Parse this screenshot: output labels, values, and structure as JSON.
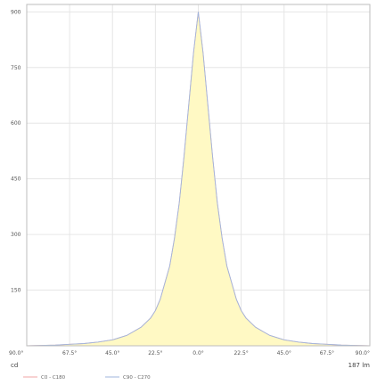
{
  "chart_data": {
    "type": "area",
    "title": "",
    "ylabel_unit": "cd",
    "xlabel_unit": "187 lm",
    "x_tick_labels": [
      "90.0°",
      "67.5°",
      "45.0°",
      "22.5°",
      "0.0°",
      "22.5°",
      "45.0°",
      "67.5°",
      "90.0°"
    ],
    "y_ticks": [
      150,
      300,
      450,
      600,
      750,
      900
    ],
    "ylim": [
      0,
      920
    ],
    "xlim": [
      -90,
      90
    ],
    "grid": true,
    "legend_position": "bottom-left",
    "colors": {
      "fill": "#fff9c4",
      "c0": "#f2a6a6",
      "c90": "#9fb6dd"
    },
    "series": [
      {
        "name": "C0 - C180",
        "x": [
          -90,
          -75,
          -67.5,
          -60,
          -52.5,
          -45,
          -37.5,
          -30,
          -25,
          -22.5,
          -20,
          -15,
          -12.5,
          -10,
          -7.5,
          -5,
          -2.5,
          0,
          2.5,
          5,
          7.5,
          10,
          12.5,
          15,
          20,
          22.5,
          25,
          30,
          37.5,
          45,
          52.5,
          60,
          67.5,
          75,
          90
        ],
        "values": [
          0,
          2,
          4,
          6,
          10,
          16,
          28,
          50,
          75,
          95,
          125,
          215,
          290,
          385,
          510,
          650,
          790,
          900,
          790,
          650,
          510,
          385,
          290,
          215,
          125,
          95,
          75,
          50,
          28,
          16,
          10,
          6,
          4,
          2,
          0
        ]
      },
      {
        "name": "C90 - C270",
        "x": [
          -90,
          -75,
          -67.5,
          -60,
          -52.5,
          -45,
          -37.5,
          -30,
          -25,
          -22.5,
          -20,
          -15,
          -12.5,
          -10,
          -7.5,
          -5,
          -2.5,
          0,
          2.5,
          5,
          7.5,
          10,
          12.5,
          15,
          20,
          22.5,
          25,
          30,
          37.5,
          45,
          52.5,
          60,
          67.5,
          75,
          90
        ],
        "values": [
          0,
          2,
          4,
          6,
          10,
          16,
          28,
          50,
          75,
          95,
          125,
          215,
          290,
          385,
          510,
          650,
          790,
          900,
          790,
          650,
          510,
          385,
          290,
          215,
          125,
          95,
          75,
          50,
          28,
          16,
          10,
          6,
          4,
          2,
          0
        ]
      }
    ]
  }
}
